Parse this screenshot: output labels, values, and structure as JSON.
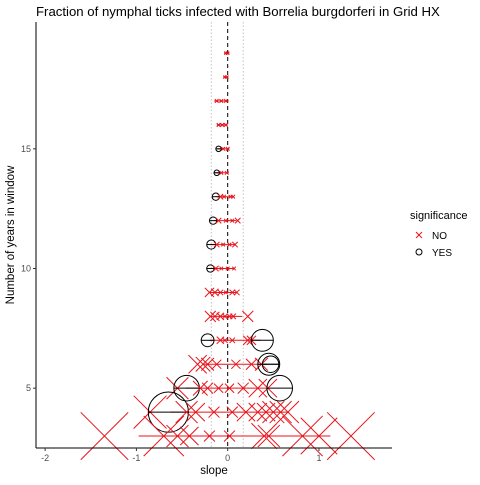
{
  "chart_data": {
    "type": "scatter",
    "title": "Fraction of nymphal ticks infected with Borrelia burgdorferi in Grid HX",
    "xlabel": "slope",
    "ylabel": "Number of years in window",
    "xlim": [
      -2.1,
      1.8
    ],
    "ylim": [
      2.5,
      20.3
    ],
    "x_ticks": [
      -2,
      -1,
      0,
      1
    ],
    "y_ticks": [
      5,
      10,
      15
    ],
    "reference_lines": {
      "zero": 0,
      "dotted": [
        -0.18,
        0.17
      ]
    },
    "colors": {
      "NO": "#e8141b",
      "YES": "#000000"
    },
    "legend": {
      "title": "significance",
      "position": "right",
      "entries": [
        "NO",
        "YES"
      ]
    },
    "grid": false,
    "points": [
      {
        "y": 19,
        "x": -0.02,
        "err": 0.03,
        "se": 0.01,
        "sig": "NO"
      },
      {
        "y": 19,
        "x": 0.0,
        "err": 0.03,
        "se": 0.01,
        "sig": "NO"
      },
      {
        "y": 18,
        "x": -0.03,
        "err": 0.03,
        "se": 0.01,
        "sig": "NO"
      },
      {
        "y": 18,
        "x": -0.01,
        "err": 0.03,
        "se": 0.01,
        "sig": "NO"
      },
      {
        "y": 17,
        "x": -0.12,
        "err": 0.08,
        "se": 0.02,
        "sig": "NO"
      },
      {
        "y": 17,
        "x": -0.07,
        "err": 0.08,
        "se": 0.02,
        "sig": "NO"
      },
      {
        "y": 17,
        "x": -0.02,
        "err": 0.08,
        "se": 0.02,
        "sig": "NO"
      },
      {
        "y": 16,
        "x": -0.1,
        "err": 0.06,
        "se": 0.02,
        "sig": "NO"
      },
      {
        "y": 16,
        "x": -0.06,
        "err": 0.06,
        "se": 0.02,
        "sig": "NO"
      },
      {
        "y": 16,
        "x": -0.02,
        "err": 0.06,
        "se": 0.02,
        "sig": "NO"
      },
      {
        "y": 15,
        "x": -0.1,
        "err": 0.07,
        "se": 0.03,
        "sig": "YES"
      },
      {
        "y": 15,
        "x": -0.05,
        "err": 0.07,
        "se": 0.02,
        "sig": "NO"
      },
      {
        "y": 15,
        "x": 0.0,
        "err": 0.07,
        "se": 0.02,
        "sig": "NO"
      },
      {
        "y": 14,
        "x": -0.12,
        "err": 0.08,
        "se": 0.03,
        "sig": "YES"
      },
      {
        "y": 14,
        "x": -0.07,
        "err": 0.08,
        "se": 0.02,
        "sig": "NO"
      },
      {
        "y": 14,
        "x": -0.01,
        "err": 0.08,
        "se": 0.02,
        "sig": "NO"
      },
      {
        "y": 13,
        "x": -0.13,
        "err": 0.09,
        "se": 0.04,
        "sig": "YES"
      },
      {
        "y": 13,
        "x": -0.08,
        "err": 0.09,
        "se": 0.03,
        "sig": "NO"
      },
      {
        "y": 13,
        "x": -0.04,
        "err": 0.09,
        "se": 0.02,
        "sig": "NO"
      },
      {
        "y": 13,
        "x": 0.03,
        "err": 0.09,
        "se": 0.02,
        "sig": "NO"
      },
      {
        "y": 13,
        "x": 0.06,
        "err": 0.09,
        "se": 0.02,
        "sig": "NO"
      },
      {
        "y": 12,
        "x": -0.16,
        "err": 0.12,
        "se": 0.04,
        "sig": "YES"
      },
      {
        "y": 12,
        "x": -0.1,
        "err": 0.12,
        "se": 0.03,
        "sig": "NO"
      },
      {
        "y": 12,
        "x": -0.02,
        "err": 0.12,
        "se": 0.02,
        "sig": "NO"
      },
      {
        "y": 12,
        "x": 0.05,
        "err": 0.12,
        "se": 0.02,
        "sig": "NO"
      },
      {
        "y": 12,
        "x": 0.11,
        "err": 0.12,
        "se": 0.03,
        "sig": "NO"
      },
      {
        "y": 11,
        "x": -0.18,
        "err": 0.14,
        "se": 0.05,
        "sig": "YES"
      },
      {
        "y": 11,
        "x": -0.12,
        "err": 0.14,
        "se": 0.03,
        "sig": "NO"
      },
      {
        "y": 11,
        "x": -0.05,
        "err": 0.14,
        "se": 0.02,
        "sig": "NO"
      },
      {
        "y": 11,
        "x": 0.02,
        "err": 0.14,
        "se": 0.02,
        "sig": "NO"
      },
      {
        "y": 11,
        "x": 0.08,
        "err": 0.14,
        "se": 0.03,
        "sig": "NO"
      },
      {
        "y": 10,
        "x": -0.19,
        "err": 0.14,
        "se": 0.04,
        "sig": "YES"
      },
      {
        "y": 10,
        "x": -0.13,
        "err": 0.14,
        "se": 0.03,
        "sig": "NO"
      },
      {
        "y": 10,
        "x": -0.07,
        "err": 0.14,
        "se": 0.02,
        "sig": "NO"
      },
      {
        "y": 10,
        "x": 0.0,
        "err": 0.14,
        "se": 0.02,
        "sig": "NO"
      },
      {
        "y": 10,
        "x": 0.07,
        "err": 0.14,
        "se": 0.02,
        "sig": "NO"
      },
      {
        "y": 9,
        "x": -0.2,
        "err": 0.15,
        "se": 0.05,
        "sig": "NO"
      },
      {
        "y": 9,
        "x": -0.14,
        "err": 0.15,
        "se": 0.04,
        "sig": "NO"
      },
      {
        "y": 9,
        "x": -0.08,
        "err": 0.15,
        "se": 0.03,
        "sig": "NO"
      },
      {
        "y": 9,
        "x": -0.02,
        "err": 0.15,
        "se": 0.02,
        "sig": "NO"
      },
      {
        "y": 9,
        "x": 0.05,
        "err": 0.15,
        "se": 0.03,
        "sig": "NO"
      },
      {
        "y": 9,
        "x": 0.1,
        "err": 0.15,
        "se": 0.03,
        "sig": "NO"
      },
      {
        "y": 8,
        "x": -0.19,
        "err": 0.18,
        "se": 0.06,
        "sig": "NO"
      },
      {
        "y": 8,
        "x": -0.14,
        "err": 0.18,
        "se": 0.05,
        "sig": "NO"
      },
      {
        "y": 8,
        "x": -0.08,
        "err": 0.18,
        "se": 0.04,
        "sig": "NO"
      },
      {
        "y": 8,
        "x": -0.03,
        "err": 0.18,
        "se": 0.03,
        "sig": "NO"
      },
      {
        "y": 8,
        "x": 0.02,
        "err": 0.18,
        "se": 0.03,
        "sig": "NO"
      },
      {
        "y": 8,
        "x": 0.06,
        "err": 0.18,
        "se": 0.03,
        "sig": "NO"
      },
      {
        "y": 8,
        "x": 0.22,
        "err": 0.18,
        "se": 0.06,
        "sig": "NO"
      },
      {
        "y": 7,
        "x": -0.22,
        "err": 0.28,
        "se": 0.07,
        "sig": "YES"
      },
      {
        "y": 7,
        "x": -0.08,
        "err": 0.28,
        "se": 0.04,
        "sig": "NO"
      },
      {
        "y": 7,
        "x": -0.03,
        "err": 0.28,
        "se": 0.03,
        "sig": "NO"
      },
      {
        "y": 7,
        "x": 0.05,
        "err": 0.28,
        "se": 0.03,
        "sig": "NO"
      },
      {
        "y": 7,
        "x": 0.22,
        "err": 0.28,
        "se": 0.05,
        "sig": "NO"
      },
      {
        "y": 7,
        "x": 0.26,
        "err": 0.28,
        "se": 0.05,
        "sig": "NO"
      },
      {
        "y": 7,
        "x": 0.38,
        "err": 0.28,
        "se": 0.12,
        "sig": "YES"
      },
      {
        "y": 6,
        "x": -0.33,
        "err": 0.35,
        "se": 0.1,
        "sig": "NO"
      },
      {
        "y": 6,
        "x": -0.27,
        "err": 0.35,
        "se": 0.08,
        "sig": "NO"
      },
      {
        "y": 6,
        "x": -0.22,
        "err": 0.35,
        "se": 0.07,
        "sig": "NO"
      },
      {
        "y": 6,
        "x": -0.12,
        "err": 0.35,
        "se": 0.05,
        "sig": "NO"
      },
      {
        "y": 6,
        "x": 0.09,
        "err": 0.35,
        "se": 0.05,
        "sig": "NO"
      },
      {
        "y": 6,
        "x": 0.26,
        "err": 0.35,
        "se": 0.06,
        "sig": "NO"
      },
      {
        "y": 6,
        "x": 0.37,
        "err": 0.35,
        "se": 0.07,
        "sig": "NO"
      },
      {
        "y": 6,
        "x": 0.45,
        "err": 0.35,
        "se": 0.12,
        "sig": "YES"
      },
      {
        "y": 6,
        "x": 0.47,
        "err": 0.35,
        "se": 0.09,
        "sig": "YES"
      },
      {
        "y": 5,
        "x": -0.55,
        "err": 0.45,
        "se": 0.12,
        "sig": "NO"
      },
      {
        "y": 5,
        "x": -0.45,
        "err": 0.45,
        "se": 0.14,
        "sig": "YES"
      },
      {
        "y": 5,
        "x": -0.3,
        "err": 0.45,
        "se": 0.08,
        "sig": "NO"
      },
      {
        "y": 5,
        "x": -0.22,
        "err": 0.45,
        "se": 0.06,
        "sig": "NO"
      },
      {
        "y": 5,
        "x": -0.1,
        "err": 0.45,
        "se": 0.05,
        "sig": "NO"
      },
      {
        "y": 5,
        "x": 0.02,
        "err": 0.45,
        "se": 0.05,
        "sig": "NO"
      },
      {
        "y": 5,
        "x": 0.17,
        "err": 0.45,
        "se": 0.06,
        "sig": "NO"
      },
      {
        "y": 5,
        "x": 0.33,
        "err": 0.45,
        "se": 0.1,
        "sig": "NO"
      },
      {
        "y": 5,
        "x": 0.44,
        "err": 0.45,
        "se": 0.1,
        "sig": "NO"
      },
      {
        "y": 5,
        "x": 0.57,
        "err": 0.45,
        "se": 0.14,
        "sig": "YES"
      },
      {
        "y": 4,
        "x": -0.85,
        "err": 0.65,
        "se": 0.18,
        "sig": "NO"
      },
      {
        "y": 4,
        "x": -0.65,
        "err": 0.65,
        "se": 0.22,
        "sig": "YES"
      },
      {
        "y": 4,
        "x": -0.45,
        "err": 0.65,
        "se": 0.12,
        "sig": "NO"
      },
      {
        "y": 4,
        "x": -0.35,
        "err": 0.65,
        "se": 0.1,
        "sig": "NO"
      },
      {
        "y": 4,
        "x": -0.15,
        "err": 0.65,
        "se": 0.06,
        "sig": "NO"
      },
      {
        "y": 4,
        "x": 0.05,
        "err": 0.65,
        "se": 0.06,
        "sig": "NO"
      },
      {
        "y": 4,
        "x": 0.2,
        "err": 0.65,
        "se": 0.1,
        "sig": "NO"
      },
      {
        "y": 4,
        "x": 0.33,
        "err": 0.65,
        "se": 0.1,
        "sig": "NO"
      },
      {
        "y": 4,
        "x": 0.42,
        "err": 0.65,
        "se": 0.1,
        "sig": "NO"
      },
      {
        "y": 4,
        "x": 0.5,
        "err": 0.65,
        "se": 0.12,
        "sig": "NO"
      },
      {
        "y": 4,
        "x": 0.58,
        "err": 0.65,
        "se": 0.12,
        "sig": "NO"
      },
      {
        "y": 4,
        "x": 0.66,
        "err": 0.65,
        "se": 0.12,
        "sig": "NO"
      },
      {
        "y": 3,
        "x": -1.35,
        "err": 1.05,
        "se": 0.26,
        "sig": "NO"
      },
      {
        "y": 3,
        "x": -0.7,
        "err": 1.05,
        "se": 0.22,
        "sig": "NO"
      },
      {
        "y": 3,
        "x": -0.55,
        "err": 1.05,
        "se": 0.12,
        "sig": "NO"
      },
      {
        "y": 3,
        "x": -0.42,
        "err": 1.05,
        "se": 0.1,
        "sig": "NO"
      },
      {
        "y": 3,
        "x": -0.2,
        "err": 1.05,
        "se": 0.06,
        "sig": "NO"
      },
      {
        "y": 3,
        "x": 0.02,
        "err": 1.05,
        "se": 0.06,
        "sig": "NO"
      },
      {
        "y": 3,
        "x": 0.4,
        "err": 1.05,
        "se": 0.14,
        "sig": "NO"
      },
      {
        "y": 3,
        "x": 0.45,
        "err": 1.05,
        "se": 0.12,
        "sig": "NO"
      },
      {
        "y": 3,
        "x": 0.82,
        "err": 1.05,
        "se": 0.22,
        "sig": "NO"
      },
      {
        "y": 3,
        "x": 1.0,
        "err": 1.05,
        "se": 0.2,
        "sig": "NO"
      },
      {
        "y": 3,
        "x": 1.35,
        "err": 1.05,
        "se": 0.26,
        "sig": "NO"
      }
    ]
  }
}
